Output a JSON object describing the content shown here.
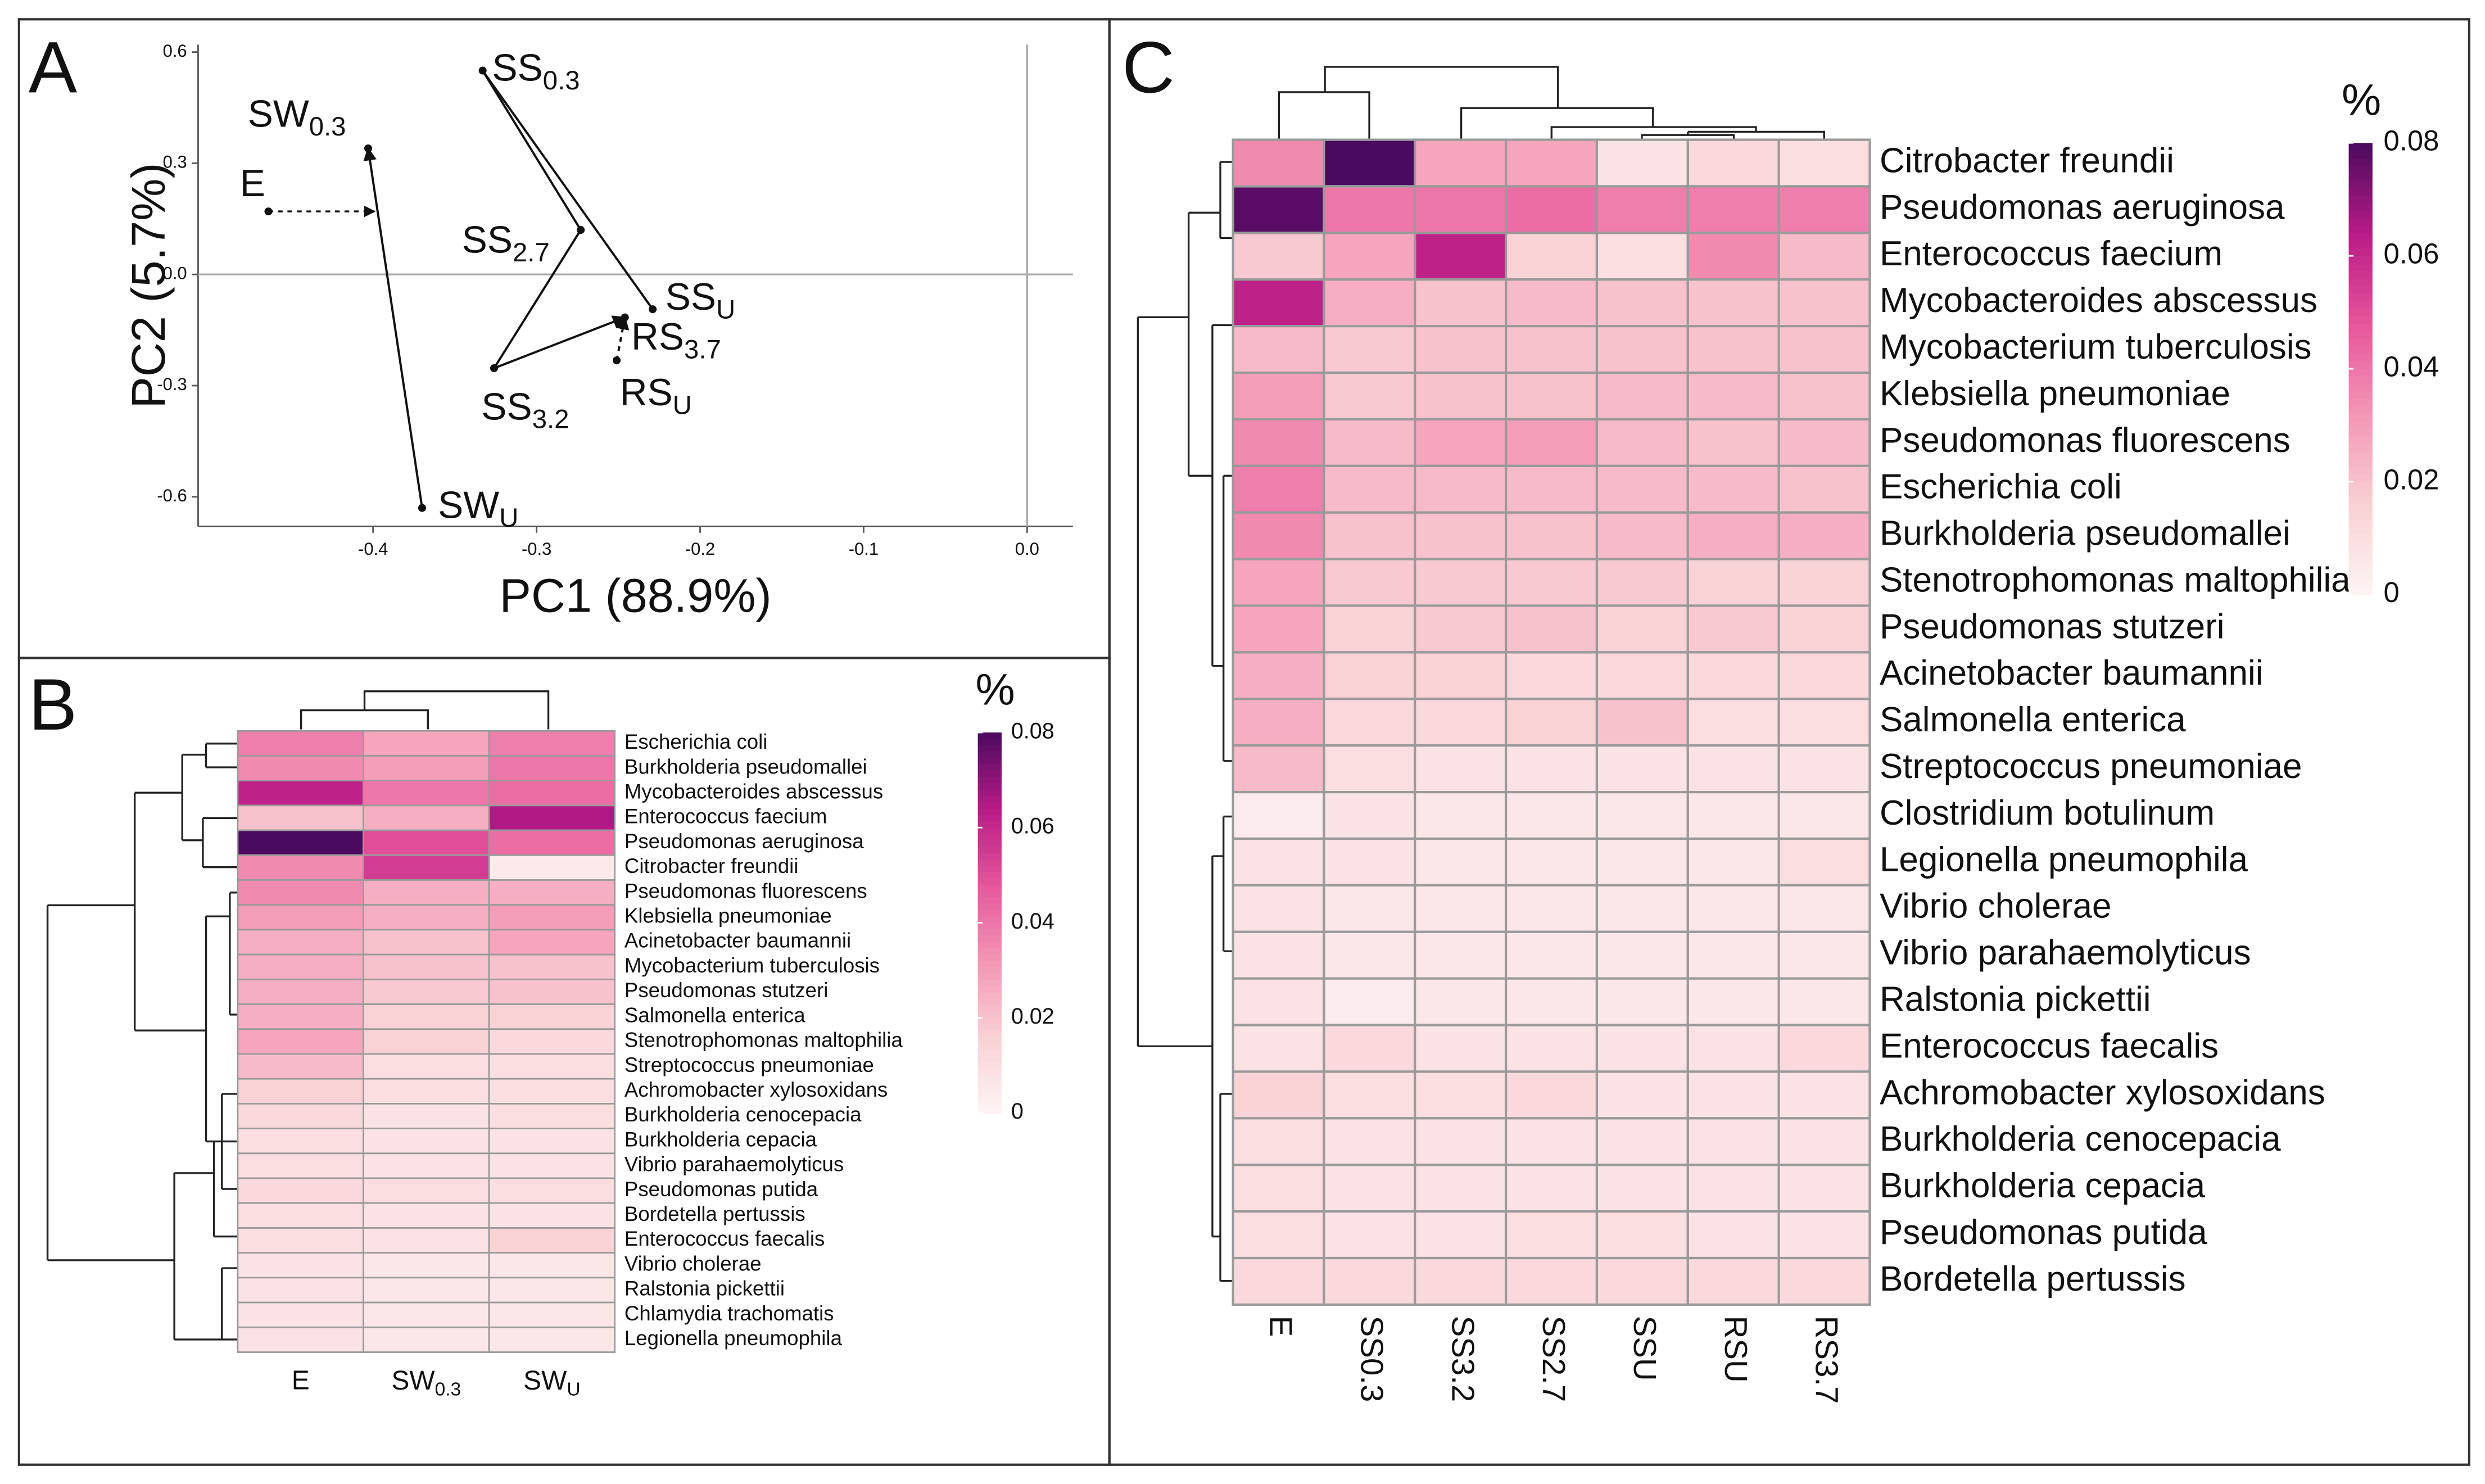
{
  "chart_data": [
    {
      "type": "scatter",
      "panel": "A",
      "x_label": "PC1 (88.9%)",
      "y_label": "PC2 (5.7%)",
      "labels": [
        "E",
        "SW0.3",
        "SWU",
        "SS0.3",
        "SS2.7",
        "SSU",
        "SS3.2",
        "RS3.7",
        "RSU"
      ],
      "x": [
        -0.464,
        -0.403,
        -0.37,
        -0.333,
        -0.273,
        -0.229,
        -0.326,
        -0.246,
        -0.251
      ],
      "y": [
        0.17,
        0.34,
        -0.63,
        0.55,
        0.12,
        -0.094,
        -0.253,
        -0.116,
        -0.232
      ],
      "xlim": [
        -0.507,
        0.028
      ],
      "ylim": [
        -0.68,
        0.62
      ],
      "xticks": [
        -0.4,
        -0.3,
        -0.2,
        -0.1,
        {
          "value": 0,
          "label": "0.0"
        }
      ],
      "yticks": [
        -0.6,
        -0.3,
        {
          "value": 0,
          "label": "0.0"
        },
        0.3,
        0.6
      ]
    },
    {
      "type": "heatmap",
      "panel": "B",
      "columns": [
        "E",
        "SW0.3",
        "SWU"
      ],
      "rows": [
        "Escherichia coli",
        "Burkholderia pseudomallei",
        "Mycobacteroides abscessus",
        "Enterococcus faecium",
        "Pseudomonas aeruginosa",
        "Citrobacter freundii",
        "Pseudomonas fluorescens",
        "Klebsiella pneumoniae",
        "Acinetobacter baumannii",
        "Mycobacterium tuberculosis",
        "Pseudomonas stutzeri",
        "Salmonella enterica",
        "Stenotrophomonas maltophilia",
        "Streptococcus pneumoniae",
        "Achromobacter xylosoxidans",
        "Burkholderia cenocepacia",
        "Burkholderia cepacia",
        "Vibrio parahaemolyticus",
        "Pseudomonas putida",
        "Bordetella pertussis",
        "Enterococcus faecalis",
        "Vibrio cholerae",
        "Ralstonia pickettii",
        "Chlamydia trachomatis",
        "Legionella pneumophila"
      ],
      "values": [
        [
          0.038,
          0.028,
          0.038
        ],
        [
          0.035,
          0.03,
          0.04
        ],
        [
          0.062,
          0.04,
          0.042
        ],
        [
          0.02,
          0.025,
          0.065
        ],
        [
          0.08,
          0.05,
          0.042
        ],
        [
          0.035,
          0.055,
          0.005
        ],
        [
          0.035,
          0.025,
          0.025
        ],
        [
          0.03,
          0.025,
          0.03
        ],
        [
          0.025,
          0.02,
          0.028
        ],
        [
          0.025,
          0.02,
          0.02
        ],
        [
          0.025,
          0.018,
          0.02
        ],
        [
          0.025,
          0.015,
          0.015
        ],
        [
          0.028,
          0.015,
          0.012
        ],
        [
          0.022,
          0.01,
          0.01
        ],
        [
          0.015,
          0.01,
          0.01
        ],
        [
          0.012,
          0.008,
          0.01
        ],
        [
          0.01,
          0.008,
          0.008
        ],
        [
          0.01,
          0.008,
          0.008
        ],
        [
          0.012,
          0.01,
          0.01
        ],
        [
          0.01,
          0.008,
          0.008
        ],
        [
          0.01,
          0.008,
          0.015
        ],
        [
          0.008,
          0.006,
          0.006
        ],
        [
          0.008,
          0.006,
          0.006
        ],
        [
          0.008,
          0.006,
          0.006
        ],
        [
          0.008,
          0.006,
          0.006
        ]
      ],
      "colorbar": {
        "title": "%",
        "lim": [
          0,
          0.08
        ],
        "ticks": [
          0,
          0.02,
          0.04,
          0.06,
          0.08
        ],
        "colors": [
          "#fdf4f4",
          "#f9d0d4",
          "#f396b4",
          "#e6559b",
          "#b81b86",
          "#4a0a5f"
        ]
      }
    },
    {
      "type": "heatmap",
      "panel": "C",
      "columns": [
        "E",
        "SS0.3",
        "SS3.2",
        "SS2.7",
        "SSU",
        "RSU",
        "RS3.7"
      ],
      "rows": [
        "Citrobacter freundii",
        "Pseudomonas aeruginosa",
        "Enterococcus faecium",
        "Mycobacteroides abscessus",
        "Mycobacterium tuberculosis",
        "Klebsiella pneumoniae",
        "Pseudomonas fluorescens",
        "Escherichia coli",
        "Burkholderia pseudomallei",
        "Stenotrophomonas maltophilia",
        "Pseudomonas stutzeri",
        "Acinetobacter baumannii",
        "Salmonella enterica",
        "Streptococcus pneumoniae",
        "Clostridium botulinum",
        "Legionella pneumophila",
        "Vibrio cholerae",
        "Vibrio parahaemolyticus",
        "Ralstonia pickettii",
        "Enterococcus faecalis",
        "Achromobacter xylosoxidans",
        "Burkholderia cenocepacia",
        "Burkholderia cepacia",
        "Pseudomonas putida",
        "Bordetella pertussis"
      ],
      "values": [
        [
          0.035,
          0.08,
          0.028,
          0.028,
          0.008,
          0.012,
          0.01
        ],
        [
          0.078,
          0.04,
          0.04,
          0.042,
          0.038,
          0.038,
          0.038
        ],
        [
          0.018,
          0.028,
          0.062,
          0.015,
          0.01,
          0.035,
          0.022
        ],
        [
          0.062,
          0.025,
          0.02,
          0.022,
          0.02,
          0.02,
          0.02
        ],
        [
          0.022,
          0.018,
          0.02,
          0.02,
          0.02,
          0.02,
          0.02
        ],
        [
          0.03,
          0.018,
          0.02,
          0.02,
          0.022,
          0.022,
          0.02
        ],
        [
          0.035,
          0.022,
          0.028,
          0.03,
          0.022,
          0.02,
          0.022
        ],
        [
          0.038,
          0.022,
          0.022,
          0.022,
          0.022,
          0.022,
          0.02
        ],
        [
          0.035,
          0.02,
          0.02,
          0.02,
          0.022,
          0.025,
          0.025
        ],
        [
          0.028,
          0.018,
          0.018,
          0.018,
          0.018,
          0.015,
          0.015
        ],
        [
          0.028,
          0.015,
          0.018,
          0.02,
          0.015,
          0.018,
          0.015
        ],
        [
          0.025,
          0.015,
          0.015,
          0.012,
          0.012,
          0.012,
          0.012
        ],
        [
          0.025,
          0.012,
          0.012,
          0.015,
          0.02,
          0.01,
          0.01
        ],
        [
          0.022,
          0.01,
          0.008,
          0.008,
          0.008,
          0.008,
          0.008
        ],
        [
          0.004,
          0.008,
          0.006,
          0.006,
          0.006,
          0.006,
          0.006
        ],
        [
          0.008,
          0.008,
          0.006,
          0.006,
          0.006,
          0.006,
          0.01
        ],
        [
          0.008,
          0.006,
          0.006,
          0.006,
          0.006,
          0.006,
          0.006
        ],
        [
          0.008,
          0.006,
          0.006,
          0.006,
          0.006,
          0.006,
          0.006
        ],
        [
          0.008,
          0.004,
          0.006,
          0.006,
          0.006,
          0.006,
          0.006
        ],
        [
          0.008,
          0.012,
          0.008,
          0.008,
          0.008,
          0.008,
          0.012
        ],
        [
          0.015,
          0.01,
          0.01,
          0.012,
          0.008,
          0.008,
          0.008
        ],
        [
          0.01,
          0.008,
          0.008,
          0.008,
          0.008,
          0.008,
          0.008
        ],
        [
          0.01,
          0.008,
          0.008,
          0.008,
          0.008,
          0.008,
          0.008
        ],
        [
          0.01,
          0.008,
          0.008,
          0.01,
          0.01,
          0.008,
          0.008
        ],
        [
          0.012,
          0.012,
          0.012,
          0.012,
          0.012,
          0.012,
          0.012
        ]
      ],
      "colorbar": {
        "title": "%",
        "lim": [
          0,
          0.08
        ],
        "ticks": [
          0,
          0.02,
          0.04,
          0.06,
          0.08
        ],
        "colors": [
          "#fdf4f4",
          "#f9d0d4",
          "#f396b4",
          "#e6559b",
          "#b81b86",
          "#4a0a5f"
        ]
      }
    }
  ]
}
